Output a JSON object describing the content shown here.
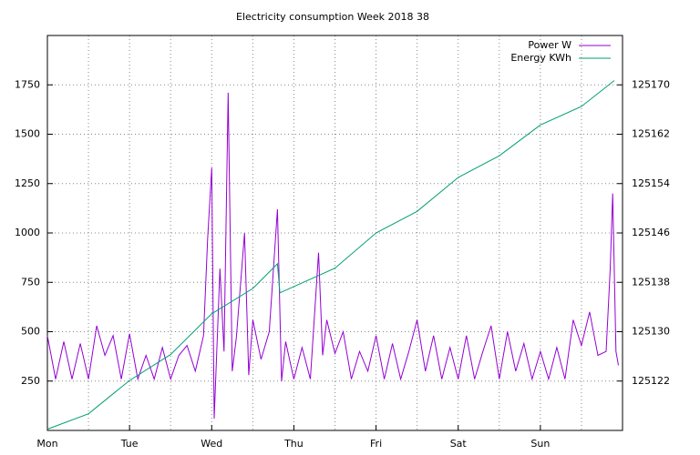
{
  "chart_data": {
    "type": "line",
    "title": "Electricity consumption Week 2018 38",
    "xlim": [
      0,
      7
    ],
    "xticks": [
      {
        "value": 0,
        "label": "Mon"
      },
      {
        "value": 1,
        "label": "Tue"
      },
      {
        "value": 2,
        "label": "Wed"
      },
      {
        "value": 3,
        "label": "Thu"
      },
      {
        "value": 4,
        "label": "Fri"
      },
      {
        "value": 5,
        "label": "Sat"
      },
      {
        "value": 6,
        "label": "Sun"
      }
    ],
    "x_minor_grid": true,
    "ylim": [
      0,
      2000
    ],
    "yticks": [
      250,
      500,
      750,
      1000,
      1250,
      1500,
      1750
    ],
    "y2lim": [
      125114,
      125178
    ],
    "y2ticks": [
      125122,
      125130,
      125138,
      125146,
      125154,
      125162,
      125170
    ],
    "grid": true,
    "legend": "top-right",
    "series": [
      {
        "name": "Power W",
        "color": "#9400d3",
        "x": [
          0,
          0.1,
          0.2,
          0.3,
          0.4,
          0.5,
          0.6,
          0.7,
          0.8,
          0.9,
          1.0,
          1.1,
          1.2,
          1.3,
          1.4,
          1.5,
          1.6,
          1.7,
          1.8,
          1.9,
          1.95,
          2.0,
          2.03,
          2.1,
          2.15,
          2.2,
          2.25,
          2.3,
          2.4,
          2.45,
          2.5,
          2.6,
          2.7,
          2.8,
          2.85,
          2.9,
          3.0,
          3.1,
          3.2,
          3.3,
          3.35,
          3.4,
          3.5,
          3.6,
          3.7,
          3.8,
          3.9,
          4.0,
          4.1,
          4.2,
          4.3,
          4.4,
          4.5,
          4.6,
          4.7,
          4.8,
          4.9,
          5.0,
          5.1,
          5.2,
          5.3,
          5.4,
          5.5,
          5.6,
          5.7,
          5.8,
          5.9,
          6.0,
          6.1,
          6.2,
          6.3,
          6.4,
          6.5,
          6.6,
          6.7,
          6.8,
          6.85,
          6.88,
          6.92,
          6.95
        ],
        "values": [
          480,
          260,
          450,
          260,
          440,
          260,
          530,
          380,
          480,
          260,
          490,
          260,
          380,
          260,
          420,
          260,
          380,
          430,
          300,
          480,
          970,
          1330,
          60,
          820,
          400,
          1710,
          300,
          470,
          1000,
          280,
          560,
          360,
          500,
          1120,
          250,
          450,
          260,
          420,
          260,
          900,
          380,
          560,
          390,
          500,
          260,
          400,
          300,
          480,
          260,
          440,
          260,
          400,
          560,
          300,
          480,
          260,
          420,
          260,
          480,
          260,
          400,
          530,
          260,
          500,
          300,
          440,
          260,
          400,
          260,
          420,
          260,
          560,
          430,
          600,
          380,
          400,
          820,
          1200,
          400,
          330
        ]
      },
      {
        "name": "Energy KWh",
        "color": "#009e73",
        "axis": "y2",
        "x": [
          0,
          0.5,
          1,
          1.5,
          2,
          2.5,
          2.8,
          2.83,
          3.5,
          4,
          4.5,
          5,
          5.5,
          6,
          6.5,
          6.9
        ],
        "values": [
          125114.2,
          125116.7,
          125122.1,
          125126.3,
          125132.9,
          125137,
          125141,
          125136.3,
          125140.3,
          125146,
          125149.5,
          125155,
          125158.5,
          125163.5,
          125166.5,
          125170.7
        ]
      }
    ]
  }
}
